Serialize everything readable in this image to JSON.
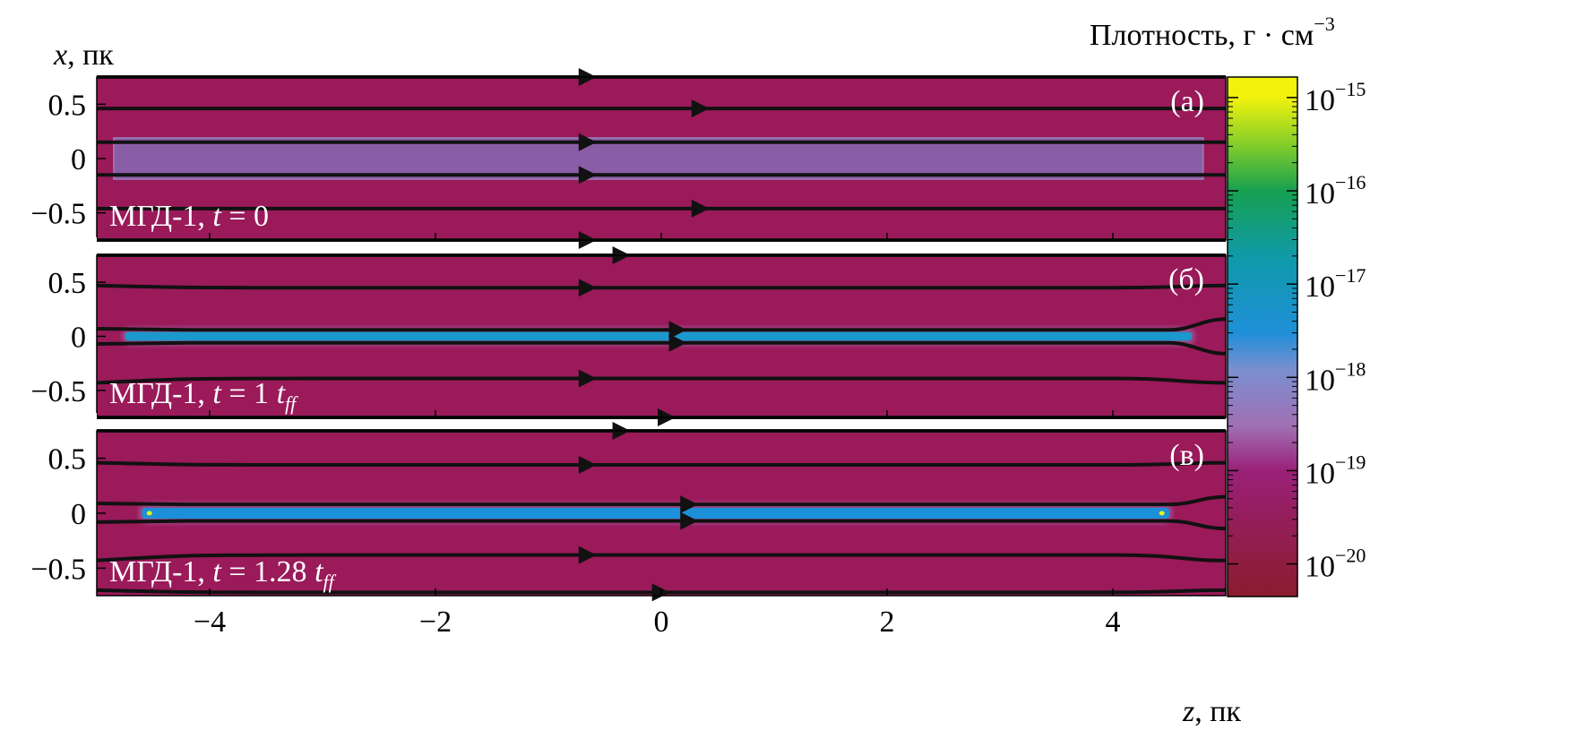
{
  "colorbar": {
    "label": "Плотность, г · см",
    "label_exp": "−3",
    "ticks": [
      {
        "base": "10",
        "exp": "−15",
        "value": 1e-15
      },
      {
        "base": "10",
        "exp": "−16",
        "value": 1e-16
      },
      {
        "base": "10",
        "exp": "−17",
        "value": 1e-17
      },
      {
        "base": "10",
        "exp": "−18",
        "value": 1e-18
      },
      {
        "base": "10",
        "exp": "−19",
        "value": 1e-19
      },
      {
        "base": "10",
        "exp": "−20",
        "value": 1e-20
      }
    ],
    "colormap_stops": [
      {
        "value": 1e-15,
        "color": "#f2f20d"
      },
      {
        "value": 3e-16,
        "color": "#7fcc2a"
      },
      {
        "value": 1e-16,
        "color": "#17a050"
      },
      {
        "value": 2e-17,
        "color": "#0f9aa8"
      },
      {
        "value": 3e-18,
        "color": "#1f8fd8"
      },
      {
        "value": 1.2e-18,
        "color": "#7b8fd0"
      },
      {
        "value": 3e-19,
        "color": "#a070b4"
      },
      {
        "value": 1e-19,
        "color": "#9a2078"
      },
      {
        "value": 5e-21,
        "color": "#8b1c30"
      }
    ]
  },
  "chart_data": {
    "type": "heatmap",
    "xlabel_var": "z",
    "xlabel_unit": ", пк",
    "ylabel_var": "x",
    "ylabel_unit": ", пк",
    "xlim": [
      -5.0,
      5.0
    ],
    "ylim": [
      -0.75,
      0.75
    ],
    "xticks": [
      -4,
      -2,
      0,
      2,
      4
    ],
    "xtick_labels": [
      "−4",
      "−2",
      "0",
      "2",
      "4"
    ],
    "yticks": [
      0.5,
      0,
      -0.5
    ],
    "ytick_labels": [
      "0.5",
      "0",
      "−0.5"
    ],
    "scale": "log",
    "panels": [
      {
        "tag": "(а)",
        "label_prefix": "МГД-1, ",
        "label_t": "t",
        "label_mid": " = 0",
        "label_tff": "",
        "background_color": "#9a1a5a",
        "filament": {
          "z_range": [
            -4.85,
            4.8
          ],
          "half_width_pc": 0.19,
          "color": "#8a5ea6"
        },
        "field_lines": [
          {
            "y": 0.75,
            "arrow_z": -0.7
          },
          {
            "y": 0.46,
            "arrow_z": 0.3
          },
          {
            "y": 0.15,
            "arrow_z": -0.7
          },
          {
            "y": -0.15,
            "arrow_z": -0.7
          },
          {
            "y": -0.46,
            "arrow_z": 0.3
          },
          {
            "y": -0.75,
            "arrow_z": -0.7
          }
        ]
      },
      {
        "tag": "(б)",
        "label_prefix": "МГД-1, ",
        "label_t": "t",
        "label_mid": " = 1 ",
        "label_tff": "t",
        "background_color": "#9a1a5a",
        "filament": {
          "z_range": [
            -4.75,
            4.7
          ],
          "half_width_pc": 0.04,
          "color": "#1b98cc"
        },
        "field_lines": [
          {
            "y": 0.75,
            "arrow_z": -0.4
          },
          {
            "y": 0.45,
            "y_edge": 0.47,
            "arrow_z": -0.7
          },
          {
            "y": 0.06,
            "y_edge": 0.07,
            "y_right": 0.16,
            "arrow_z": 0.1
          },
          {
            "y": -0.06,
            "y_edge": -0.07,
            "y_right": -0.16,
            "arrow_z": 0.1
          },
          {
            "y": -0.39,
            "y_edge": -0.43,
            "arrow_z": -0.7
          },
          {
            "y": -0.75,
            "arrow_z": 0.0
          }
        ]
      },
      {
        "tag": "(в)",
        "label_prefix": "МГД-1, ",
        "label_t": "t",
        "label_mid": " = 1.28 ",
        "label_tff": "t",
        "background_color": "#9a1a5a",
        "filament": {
          "z_range": [
            -4.6,
            4.5
          ],
          "half_width_pc": 0.05,
          "color": "#1b90d8"
        },
        "field_lines": [
          {
            "y": 0.75,
            "arrow_z": -0.4
          },
          {
            "y": 0.44,
            "y_edge": 0.46,
            "arrow_z": -0.7
          },
          {
            "y": 0.08,
            "y_edge": 0.09,
            "y_right": 0.15,
            "arrow_z": 0.2
          },
          {
            "y": -0.07,
            "y_edge": -0.08,
            "y_right": -0.14,
            "arrow_z": 0.2
          },
          {
            "y": -0.38,
            "y_edge": -0.43,
            "arrow_z": -0.7
          },
          {
            "y": -0.72,
            "y_edge": -0.7,
            "arrow_z": -0.05
          }
        ]
      }
    ]
  }
}
